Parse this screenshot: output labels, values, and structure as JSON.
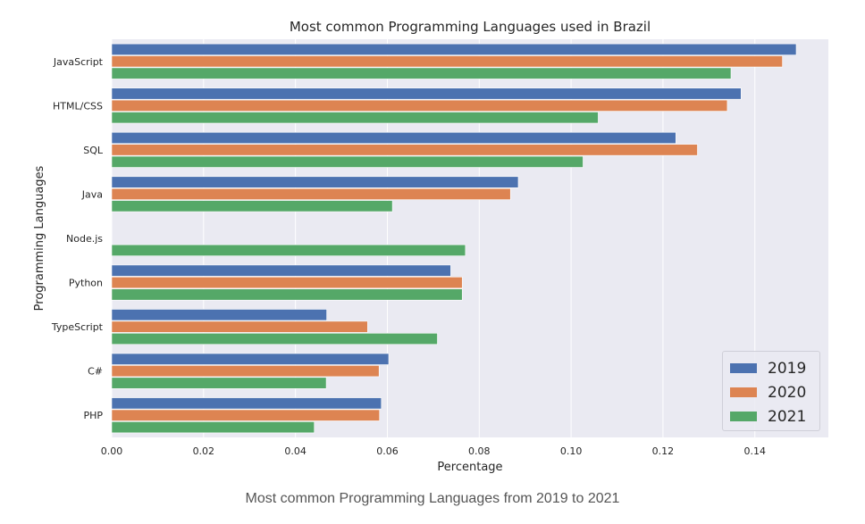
{
  "caption": "Most common Programming Languages from 2019 to 2021",
  "legend": [
    {
      "label": "2019",
      "color": "#4c72b0"
    },
    {
      "label": "2020",
      "color": "#dd8452"
    },
    {
      "label": "2021",
      "color": "#55a868"
    }
  ],
  "chart_data": {
    "type": "bar",
    "orientation": "horizontal",
    "title": "Most common Programming Languages used in Brazil",
    "xlabel": "Percentage",
    "ylabel": "Programming Languages",
    "xlim": [
      0.0,
      0.156
    ],
    "xticks": [
      0.0,
      0.02,
      0.04,
      0.06,
      0.08,
      0.1,
      0.12,
      0.14
    ],
    "xtick_labels": [
      "0.00",
      "0.02",
      "0.04",
      "0.06",
      "0.08",
      "0.10",
      "0.12",
      "0.14"
    ],
    "grid": true,
    "legend_position": "bottom-right",
    "categories": [
      "JavaScript",
      "HTML/CSS",
      "SQL",
      "Java",
      "Node.js",
      "Python",
      "TypeScript",
      "C#",
      "PHP"
    ],
    "series": [
      {
        "name": "2019",
        "color": "#4c72b0",
        "values": [
          0.149,
          0.137,
          0.1228,
          0.0885,
          null,
          0.0738,
          0.0468,
          0.0603,
          0.0587
        ]
      },
      {
        "name": "2020",
        "color": "#dd8452",
        "values": [
          0.146,
          0.134,
          0.1275,
          0.0868,
          null,
          0.0763,
          0.0557,
          0.0582,
          0.0583
        ]
      },
      {
        "name": "2021",
        "color": "#55a868",
        "values": [
          0.1348,
          0.1059,
          0.1026,
          0.0611,
          0.077,
          0.0763,
          0.0709,
          0.0467,
          0.0441
        ]
      }
    ]
  }
}
